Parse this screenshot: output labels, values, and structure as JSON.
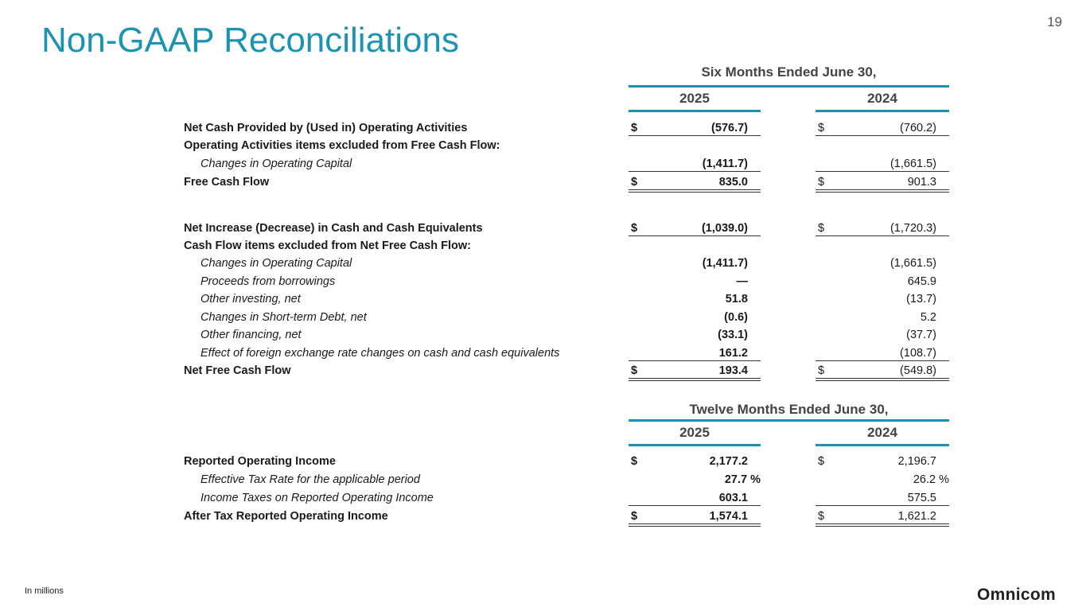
{
  "page": {
    "title": "Non-GAAP Reconciliations",
    "page_number": "19",
    "footnote": "In millions",
    "logo": "Omnicom",
    "accent_color": "#1b93b1"
  },
  "table1": {
    "period": "Six Months Ended June 30,",
    "years": [
      "2025",
      "2024"
    ],
    "rows": [
      {
        "label": "Net Cash Provided by (Used in) Operating Activities",
        "bold": true,
        "v1": "(576.7)",
        "v2": "(760.2)",
        "dollar": true,
        "line": "u"
      },
      {
        "label": "Operating Activities items excluded from Free Cash Flow:",
        "bold": true
      },
      {
        "label": "Changes in Operating Capital",
        "indent": true,
        "v1": "(1,411.7)",
        "v2": "(1,661.5)",
        "line": "u"
      },
      {
        "label": "Free Cash Flow",
        "bold": true,
        "v1": "835.0",
        "v2": "901.3",
        "dollar": true,
        "line": "dbl"
      },
      {
        "label": "Net Increase (Decrease) in Cash and Cash Equivalents",
        "bold": true,
        "v1": "(1,039.0)",
        "v2": "(1,720.3)",
        "dollar": true,
        "line": "u"
      },
      {
        "label": "Cash Flow items excluded from Net Free Cash Flow:",
        "bold": true
      },
      {
        "label": "Changes in Operating Capital",
        "indent": true,
        "v1": "(1,411.7)",
        "v2": "(1,661.5)"
      },
      {
        "label": "Proceeds from borrowings",
        "indent": true,
        "v1": "—",
        "v2": "645.9"
      },
      {
        "label": "Other investing, net",
        "indent": true,
        "v1": "51.8",
        "v2": "(13.7)"
      },
      {
        "label": "Changes in Short-term Debt, net",
        "indent": true,
        "v1": "(0.6)",
        "v2": "5.2"
      },
      {
        "label": "Other financing, net",
        "indent": true,
        "v1": "(33.1)",
        "v2": "(37.7)"
      },
      {
        "label": "Effect of foreign exchange rate changes on cash and cash equivalents",
        "indent": true,
        "v1": "161.2",
        "v2": "(108.7)",
        "line": "u"
      },
      {
        "label": "Net Free Cash Flow",
        "bold": true,
        "v1": "193.4",
        "v2": "(549.8)",
        "dollar": true,
        "line": "dbl"
      }
    ]
  },
  "table2": {
    "period": "Twelve Months Ended June 30,",
    "years": [
      "2025",
      "2024"
    ],
    "rows": [
      {
        "label": "Reported Operating Income",
        "bold": true,
        "v1": "2,177.2",
        "v2": "2,196.7",
        "dollar": true
      },
      {
        "label": "Effective Tax Rate for the applicable period",
        "indent": true,
        "v1": "27.7 %",
        "v2": "26.2 %",
        "pct": true
      },
      {
        "label": "Income Taxes on Reported Operating Income",
        "indent": true,
        "v1": "603.1",
        "v2": "575.5",
        "line": "u"
      },
      {
        "label": "After Tax Reported Operating Income",
        "bold": true,
        "v1": "1,574.1",
        "v2": "1,621.2",
        "dollar": true,
        "line": "dbl"
      }
    ]
  },
  "currency_symbol": "$"
}
